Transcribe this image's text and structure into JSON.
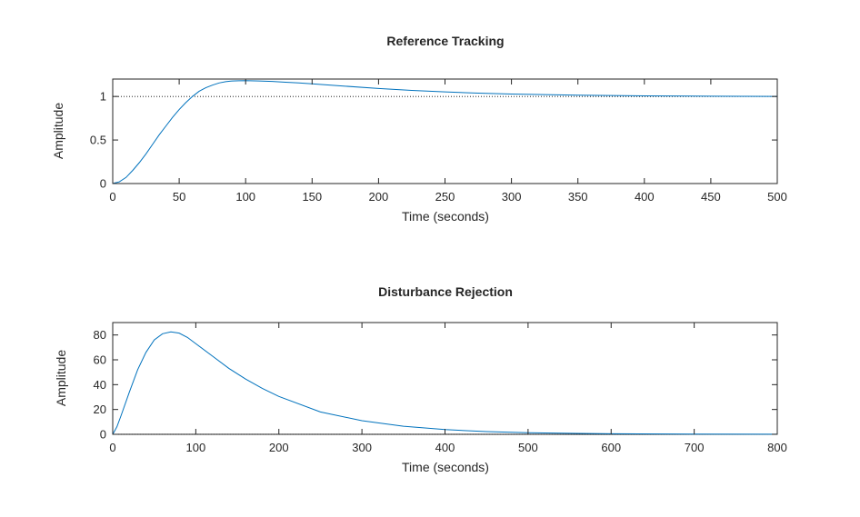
{
  "chart_data": [
    {
      "type": "line",
      "title": "Reference Tracking",
      "xlabel": "Time (seconds)",
      "ylabel": "Amplitude",
      "xlim": [
        0,
        500
      ],
      "ylim": [
        0,
        1.2
      ],
      "xticks": [
        "0",
        "50",
        "100",
        "150",
        "200",
        "250",
        "300",
        "350",
        "400",
        "450",
        "500"
      ],
      "yticks": [
        "0",
        "0.5",
        "1"
      ],
      "reference_line": 1,
      "grid": false,
      "series": [
        {
          "color": "#0072BD",
          "x": [
            0,
            5,
            10,
            15,
            20,
            25,
            30,
            35,
            40,
            45,
            50,
            55,
            60,
            65,
            70,
            75,
            80,
            85,
            90,
            95,
            100,
            110,
            120,
            130,
            140,
            150,
            175,
            200,
            225,
            250,
            275,
            300,
            350,
            400,
            450,
            500
          ],
          "y": [
            0,
            0.02,
            0.07,
            0.15,
            0.24,
            0.34,
            0.45,
            0.56,
            0.66,
            0.76,
            0.85,
            0.93,
            1.0,
            1.06,
            1.1,
            1.13,
            1.155,
            1.17,
            1.178,
            1.181,
            1.182,
            1.178,
            1.172,
            1.164,
            1.155,
            1.145,
            1.118,
            1.092,
            1.07,
            1.052,
            1.038,
            1.028,
            1.015,
            1.007,
            1.003,
            1.0
          ]
        }
      ]
    },
    {
      "type": "line",
      "title": "Disturbance Rejection",
      "xlabel": "Time (seconds)",
      "ylabel": "Amplitude",
      "xlim": [
        0,
        800
      ],
      "ylim": [
        0,
        90
      ],
      "xticks": [
        "0",
        "100",
        "200",
        "300",
        "400",
        "500",
        "600",
        "700",
        "800"
      ],
      "yticks": [
        "0",
        "20",
        "40",
        "60",
        "80"
      ],
      "reference_line": 0,
      "grid": false,
      "series": [
        {
          "color": "#0072BD",
          "x": [
            0,
            5,
            10,
            20,
            30,
            40,
            50,
            60,
            70,
            80,
            90,
            100,
            120,
            140,
            160,
            180,
            200,
            250,
            300,
            350,
            400,
            450,
            500,
            550,
            600,
            700,
            800
          ],
          "y": [
            0,
            6,
            15,
            34,
            52,
            66,
            76,
            81,
            82.5,
            81.5,
            78,
            73,
            63,
            53,
            44.5,
            37,
            30.5,
            18,
            11,
            6.5,
            3.8,
            2.2,
            1.3,
            0.8,
            0.5,
            0.2,
            0.1
          ]
        }
      ]
    }
  ]
}
